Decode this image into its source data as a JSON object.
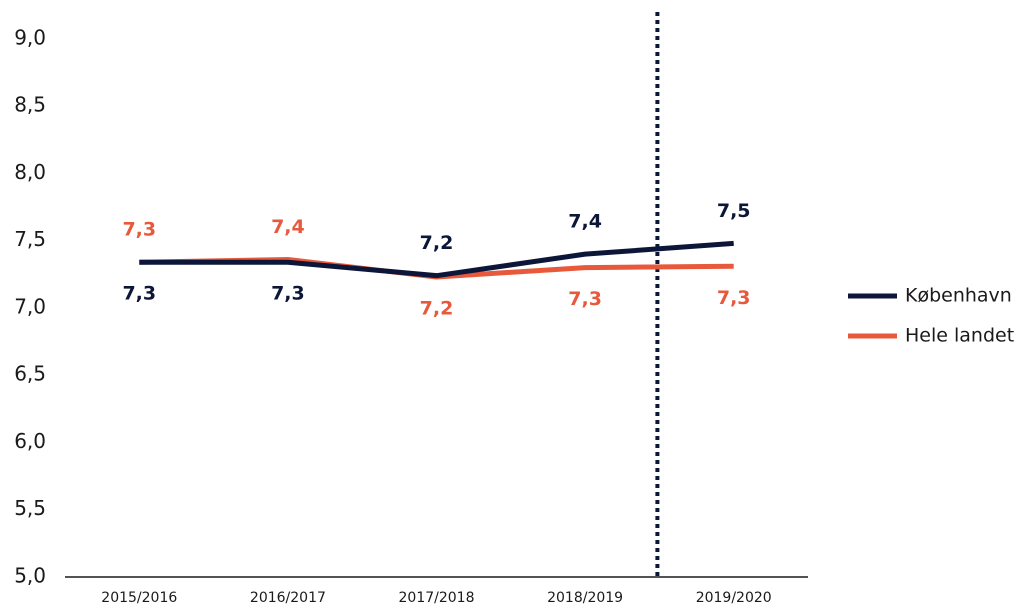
{
  "chart_data": {
    "type": "line",
    "categories": [
      "2015/2016",
      "2016/2017",
      "2017/2018",
      "2018/2019",
      "2019/2020"
    ],
    "series": [
      {
        "name": "København",
        "color": "#0c1638",
        "values": [
          7.34,
          7.34,
          7.24,
          7.4,
          7.48
        ],
        "value_labels": [
          "7,3",
          "7,3",
          "7,2",
          "7,4",
          "7,5"
        ]
      },
      {
        "name": "Hele landet",
        "color": "#e8593c",
        "values": [
          7.34,
          7.36,
          7.23,
          7.3,
          7.31
        ],
        "value_labels": [
          "7,3",
          "7,4",
          "7,2",
          "7,3",
          "7,3"
        ]
      }
    ],
    "ylim": [
      5,
      9.2
    ],
    "yticks": [
      {
        "value": 5,
        "label": "5,0"
      },
      {
        "value": 5.5,
        "label": "5,5"
      },
      {
        "value": 6,
        "label": "6,0"
      },
      {
        "value": 6.5,
        "label": "6,5"
      },
      {
        "value": 7,
        "label": "7,0"
      },
      {
        "value": 7.5,
        "label": "7,5"
      },
      {
        "value": 8,
        "label": "8,0"
      },
      {
        "value": 8.5,
        "label": "8,5"
      },
      {
        "value": 9,
        "label": "9,0"
      }
    ],
    "legend": "right"
  }
}
